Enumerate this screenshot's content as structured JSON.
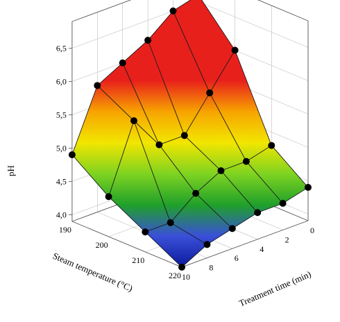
{
  "chart_data": {
    "type": "surface3d",
    "zlabel": "pH",
    "xlabel": "Steam temperature (°C)",
    "ylabel": "Treatment time (min)",
    "temperatures": [
      190,
      200,
      210,
      220
    ],
    "times": [
      0,
      2,
      4,
      6,
      8,
      10
    ],
    "z_ticks": [
      "4,0",
      "4,5",
      "5,0",
      "5,5",
      "6,0",
      "6,5"
    ],
    "temp_ticks": [
      "190",
      "200",
      "210",
      "220"
    ],
    "time_ticks": [
      "0",
      "2",
      "4",
      "6",
      "8",
      "10"
    ],
    "values": [
      [
        6.6,
        6.5,
        6.2,
        6.0,
        5.8,
        4.9
      ],
      [
        6.0,
        5.5,
        5.0,
        5.0,
        5.5,
        4.5
      ],
      [
        4.8,
        4.7,
        4.7,
        4.5,
        4.2,
        4.2
      ],
      [
        4.4,
        4.3,
        4.3,
        4.2,
        4.1,
        3.9
      ]
    ],
    "colormap": [
      "#0b1a9c",
      "#3a50d8",
      "#1fa02a",
      "#7ed321",
      "#f2e600",
      "#f7a400",
      "#e8201c"
    ],
    "grid": true
  }
}
